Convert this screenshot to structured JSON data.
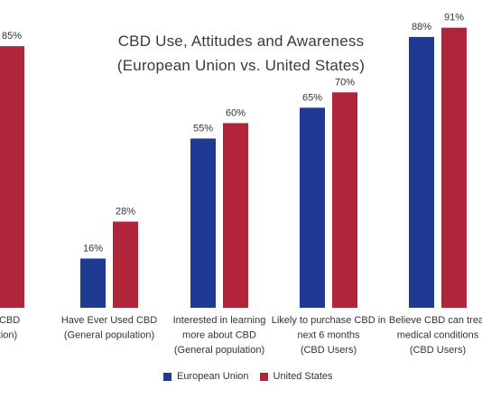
{
  "chart_data": {
    "type": "bar",
    "title": "CBD Use, Attitudes and Awareness",
    "subtitle": "(European Union vs. United States)",
    "categories": [
      [
        "ard of CBD",
        "opulation)"
      ],
      [
        "Have Ever Used CBD",
        "(General population)"
      ],
      [
        "Interested in learning",
        "more about CBD",
        "(General population)"
      ],
      [
        "Likely to purchase CBD in",
        "next 6 months",
        "(CBD Users)"
      ],
      [
        "Believe CBD can treat",
        "medical conditions",
        "(CBD Users)"
      ]
    ],
    "series": [
      {
        "name": "European Union",
        "color": "#1f3a93",
        "values": [
          null,
          16,
          55,
          65,
          88
        ],
        "labels": [
          "",
          "16%",
          "55%",
          "65%",
          "88%"
        ]
      },
      {
        "name": "United States",
        "color": "#b0253a",
        "values": [
          85,
          28,
          60,
          70,
          91
        ],
        "labels": [
          "85%",
          "28%",
          "60%",
          "70%",
          "91%"
        ]
      }
    ],
    "ylim": [
      0,
      100
    ],
    "grid": false,
    "legend_position": "bottom"
  }
}
